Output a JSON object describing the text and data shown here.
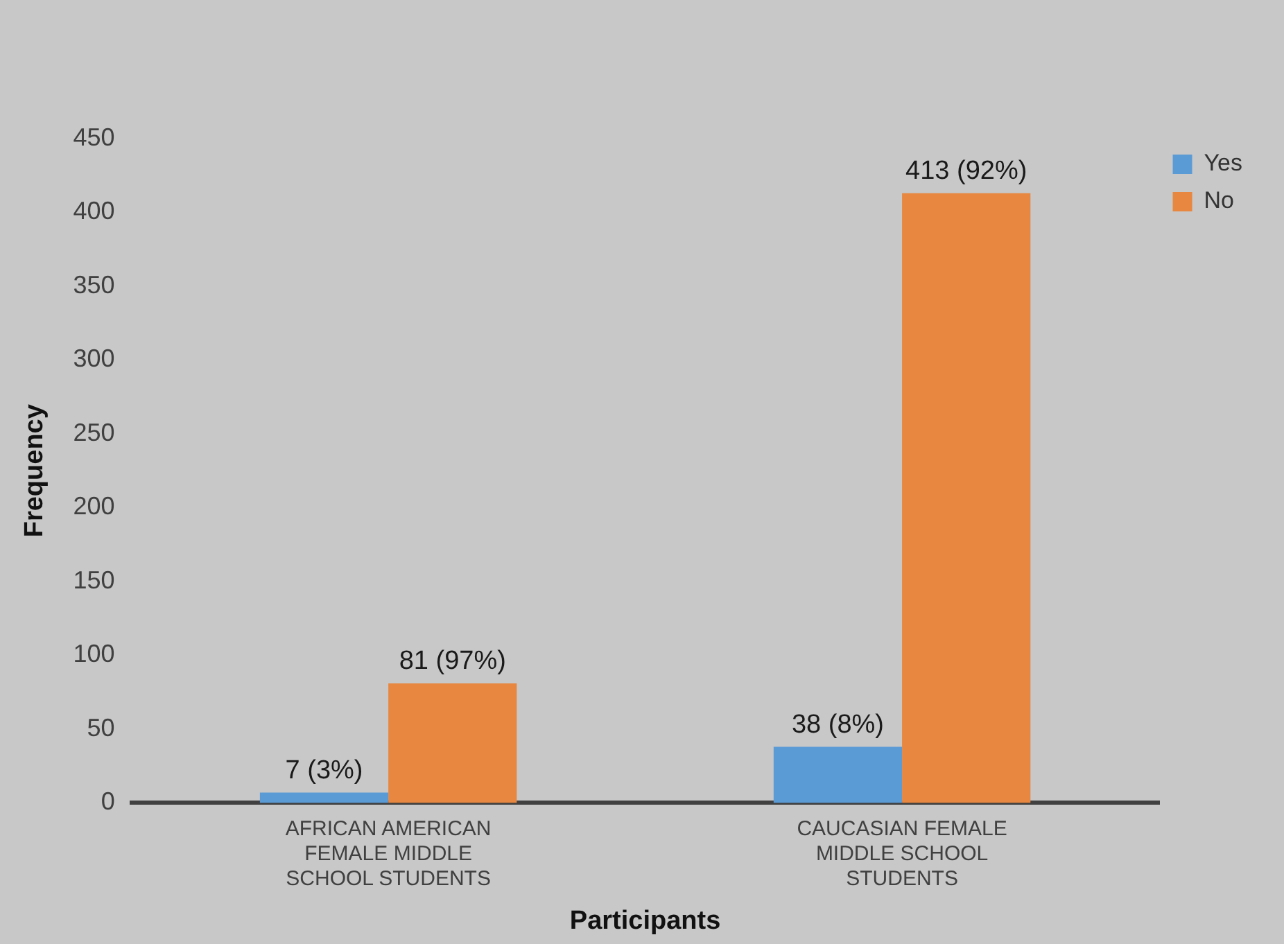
{
  "chart_data": {
    "type": "bar",
    "xlabel": "Participants",
    "ylabel": "Frequency",
    "categories": [
      "AFRICAN AMERICAN FEMALE MIDDLE SCHOOL STUDENTS",
      "CAUCASIAN FEMALE MIDDLE SCHOOL STUDENTS"
    ],
    "series": [
      {
        "name": "Yes",
        "color": "#5b9bd5",
        "values": [
          7,
          38
        ],
        "value_labels": [
          "7 (3%)",
          "38 (8%)"
        ]
      },
      {
        "name": "No",
        "color": "#e8873f",
        "values": [
          81,
          413
        ],
        "value_labels": [
          "81 (97%)",
          "413 (92%)"
        ]
      }
    ],
    "ylim": [
      0,
      450
    ],
    "yticks": [
      0,
      50,
      100,
      150,
      200,
      250,
      300,
      350,
      400,
      450
    ],
    "grid": false,
    "legend": "top right"
  }
}
